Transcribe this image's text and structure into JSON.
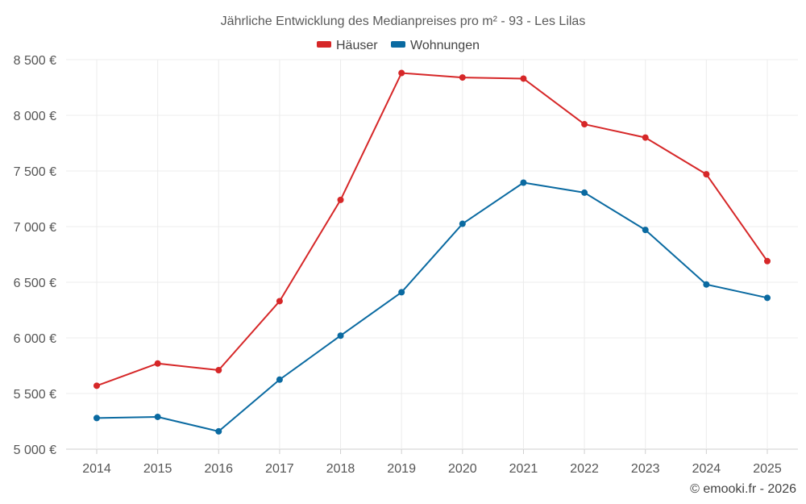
{
  "chart_data": {
    "type": "line",
    "title": "Jährliche Entwicklung des Medianpreises pro m² - 93 - Les Lilas",
    "categories": [
      "2014",
      "2015",
      "2016",
      "2017",
      "2018",
      "2019",
      "2020",
      "2021",
      "2022",
      "2023",
      "2024",
      "2025"
    ],
    "series": [
      {
        "name": "Häuser",
        "color": "#d62728",
        "values": [
          5570,
          5770,
          5710,
          6330,
          7240,
          8380,
          8340,
          8330,
          7920,
          7800,
          7470,
          6690
        ]
      },
      {
        "name": "Wohnungen",
        "color": "#0a6aa1",
        "values": [
          5280,
          5290,
          5160,
          5625,
          6020,
          6410,
          7025,
          7395,
          7305,
          6970,
          6480,
          6360
        ]
      }
    ],
    "ylim": [
      5000,
      8500
    ],
    "yticks": [
      5000,
      5500,
      6000,
      6500,
      7000,
      7500,
      8000,
      8500
    ],
    "ytick_labels": [
      "5 000 €",
      "5 500 €",
      "6 000 €",
      "6 500 €",
      "7 000 €",
      "7 500 €",
      "8 000 €",
      "8 500 €"
    ],
    "xlabel": "",
    "ylabel": "",
    "grid": true,
    "legend": "top-center"
  },
  "footer": {
    "credit": "© emooki.fr - 2026"
  }
}
